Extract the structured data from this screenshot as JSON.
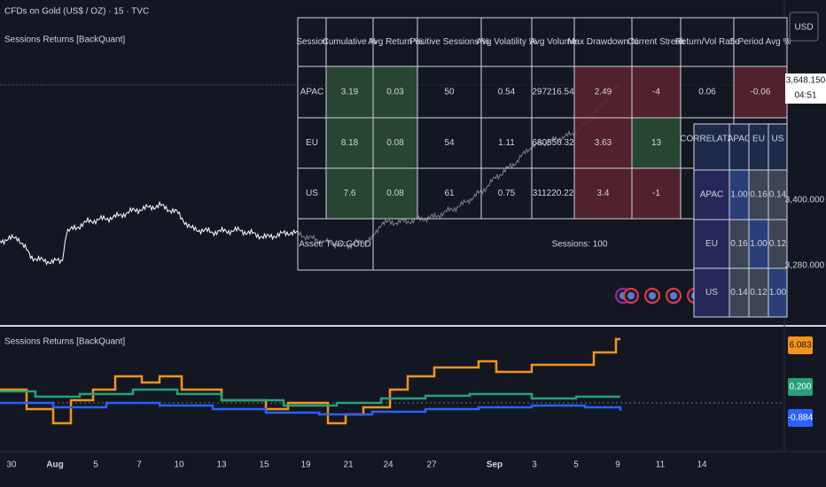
{
  "header": {
    "symbol": "CFDs on Gold (US$ / OZ) · 15 · TVC",
    "indicator": "Sessions Returns [BackQuant]",
    "currency": "USD"
  },
  "price_scale": {
    "last_price": "3,648.150",
    "countdown": "04:51",
    "ticks": [
      "3,400.000",
      "3,280.000"
    ]
  },
  "stats_table": {
    "headers": [
      "Session",
      "Cumulative %",
      "Avg Return %",
      "Positive Sessions %",
      "Avg Volatility %",
      "Avg Volume",
      "Max Drawdown %",
      "Current Streak",
      "Return/Vol Ratio",
      "5-Period Avg %"
    ],
    "rows": [
      [
        "APAC",
        "3.19",
        "0.03",
        "50",
        "0.54",
        "297216.54",
        "2.49",
        "-4",
        "0.06",
        "-0.06"
      ],
      [
        "EU",
        "8.18",
        "0.08",
        "54",
        "1.11",
        "680556.32",
        "3.63",
        "13",
        "",
        ""
      ],
      [
        "US",
        "7.6",
        "0.08",
        "61",
        "0.75",
        "311220.22",
        "3.4",
        "-1",
        "",
        ""
      ]
    ],
    "footer": [
      "Asset: TVC:GOLD",
      "Sessions: 100"
    ]
  },
  "correlation_table": {
    "headers": [
      "CORRELATION",
      "APAC",
      "EU",
      "US"
    ],
    "rows": [
      [
        "APAC",
        "1.00",
        "0.16",
        "0.14"
      ],
      [
        "EU",
        "0.16",
        "1.00",
        "0.12"
      ],
      [
        "US",
        "0.14",
        "0.12",
        "1.00"
      ]
    ]
  },
  "lower_pane": {
    "title": "Sessions Returns [BackQuant]",
    "labels": [
      "6.083",
      "0.200",
      "-0.884"
    ]
  },
  "time_axis": [
    "30",
    "Aug",
    "5",
    "7",
    "10",
    "13",
    "15",
    "19",
    "21",
    "24",
    "27",
    "Sep",
    "3",
    "5",
    "9",
    "11",
    "14"
  ]
}
